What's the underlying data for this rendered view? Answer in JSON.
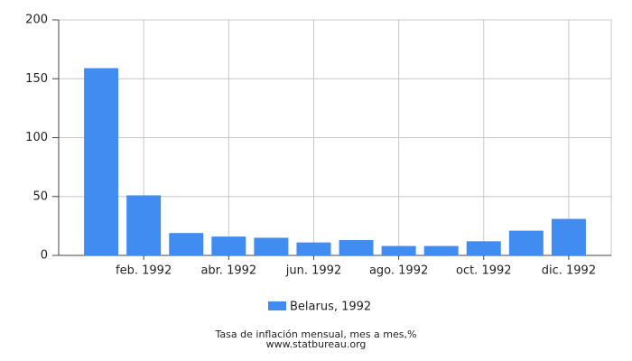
{
  "chart_data": {
    "type": "bar",
    "categories": [
      null,
      "feb. 1992",
      null,
      "abr. 1992",
      null,
      "jun. 1992",
      null,
      "ago. 1992",
      null,
      "oct. 1992",
      null,
      "dic. 1992"
    ],
    "series": [
      {
        "name": "Belarus, 1992",
        "color": "#418cf0",
        "values": [
          159,
          51,
          19,
          16,
          15,
          11,
          13,
          8,
          8,
          12,
          21,
          31
        ]
      }
    ],
    "ylim": [
      0,
      200
    ],
    "yticks": [
      0,
      50,
      100,
      150,
      200
    ],
    "grid": true,
    "footer": [
      "Tasa de inflación mensual, mes a mes,%",
      "www.statbureau.org"
    ]
  }
}
